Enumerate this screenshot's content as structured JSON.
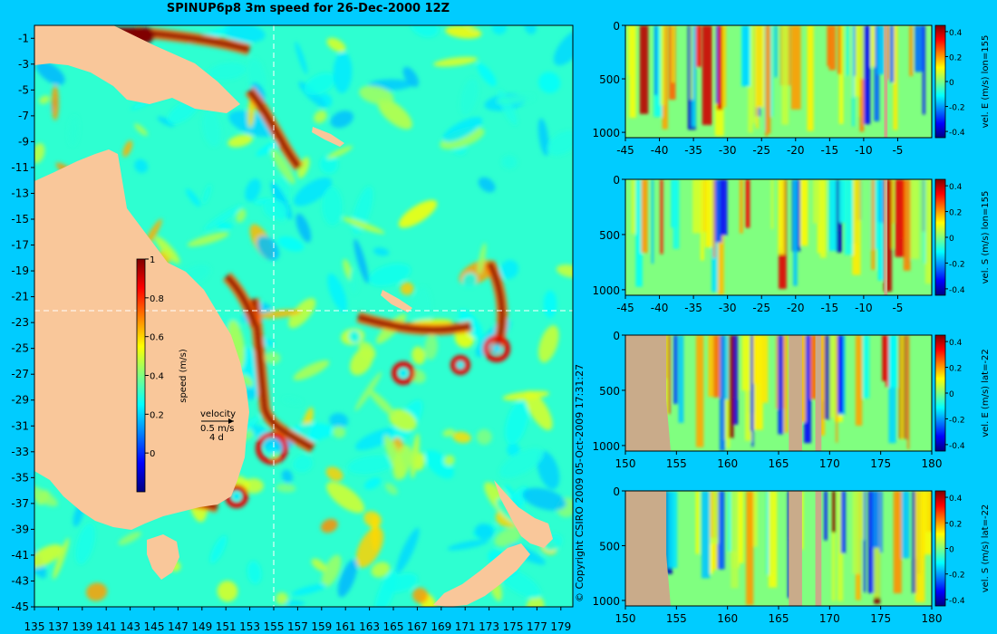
{
  "title": "SPINUP6p8 3m speed for 26-Dec-2000 12Z",
  "copyright": "© Copyright CSIRO 2009   05-Oct-2009 17:31:27",
  "colors": {
    "background": "#00ccff",
    "land": "#f9c79a",
    "section_land": "#c9ab8a",
    "jet_stops": [
      "#000080",
      "#0000ff",
      "#0080ff",
      "#00ffff",
      "#80ff80",
      "#ffff00",
      "#ff8000",
      "#ff0000",
      "#800000"
    ]
  },
  "chart_data": [
    {
      "type": "heatmap",
      "title": "SPINUP6p8 3m speed for 26-Dec-2000 12Z",
      "x_ticks": [
        "135",
        "137",
        "139",
        "141",
        "143",
        "145",
        "147",
        "149",
        "151",
        "153",
        "155",
        "157",
        "159",
        "161",
        "163",
        "165",
        "167",
        "169",
        "171",
        "173",
        "175",
        "177",
        "179"
      ],
      "y_ticks": [
        "-1",
        "-3",
        "-5",
        "-7",
        "-9",
        "-11",
        "-13",
        "-15",
        "-17",
        "-19",
        "-21",
        "-23",
        "-25",
        "-27",
        "-29",
        "-31",
        "-33",
        "-35",
        "-37",
        "-39",
        "-41",
        "-43",
        "-45"
      ],
      "xlim": [
        135,
        180
      ],
      "ylim": [
        -45,
        0
      ],
      "colorbar": {
        "label": "speed (m/s)",
        "ticks": [
          "0",
          "0.2",
          "0.4",
          "0.6",
          "0.8",
          "1"
        ],
        "range": [
          -0.2,
          1
        ]
      },
      "velocity_key": {
        "label": "velocity",
        "speed": "0.5 m/s",
        "period": "4 d"
      },
      "crosshair": {
        "lon": 155,
        "lat": -22
      }
    },
    {
      "type": "heatmap",
      "x_ticks": [
        "-45",
        "-40",
        "-35",
        "-30",
        "-25",
        "-20",
        "-15",
        "-10",
        "-5"
      ],
      "xlim": [
        -45,
        0
      ],
      "y_ticks": [
        "0",
        "500",
        "1000"
      ],
      "ylim": [
        0,
        1050
      ],
      "colorbar": {
        "label": "vel. E (m/s) lon=155",
        "ticks": [
          "0.4",
          "0.2",
          "0",
          "-0.2",
          "-0.4"
        ],
        "range": [
          -0.45,
          0.45
        ]
      }
    },
    {
      "type": "heatmap",
      "x_ticks": [
        "-45",
        "-40",
        "-35",
        "-30",
        "-25",
        "-20",
        "-15",
        "-10",
        "-5"
      ],
      "xlim": [
        -45,
        0
      ],
      "y_ticks": [
        "0",
        "500",
        "1000"
      ],
      "ylim": [
        0,
        1050
      ],
      "colorbar": {
        "label": "vel. S (m/s) lon=155",
        "ticks": [
          "0.4",
          "0.2",
          "0",
          "-0.2",
          "-0.4"
        ],
        "range": [
          -0.45,
          0.45
        ]
      }
    },
    {
      "type": "heatmap",
      "x_ticks": [
        "150",
        "155",
        "160",
        "165",
        "170",
        "175",
        "180"
      ],
      "xlim": [
        150,
        180
      ],
      "y_ticks": [
        "0",
        "500",
        "1000"
      ],
      "ylim": [
        0,
        1050
      ],
      "colorbar": {
        "label": "vel. E (m/s) lat=-22",
        "ticks": [
          "0.4",
          "0.2",
          "0",
          "-0.2",
          "-0.4"
        ],
        "range": [
          -0.45,
          0.45
        ]
      }
    },
    {
      "type": "heatmap",
      "x_ticks": [
        "150",
        "155",
        "160",
        "165",
        "170",
        "175",
        "180"
      ],
      "xlim": [
        150,
        180
      ],
      "y_ticks": [
        "0",
        "500",
        "1000"
      ],
      "ylim": [
        0,
        1050
      ],
      "colorbar": {
        "label": "vel. S (m/s) lat=-22",
        "ticks": [
          "0.4",
          "0.2",
          "0",
          "-0.2",
          "-0.4"
        ],
        "range": [
          -0.45,
          0.45
        ]
      }
    }
  ]
}
